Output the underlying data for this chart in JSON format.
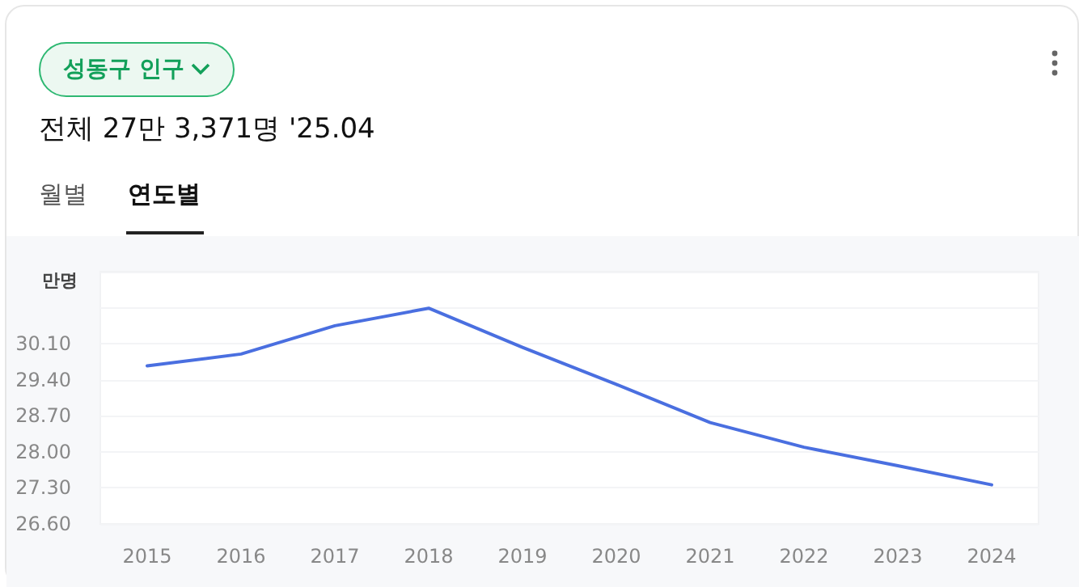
{
  "chart_data": {
    "type": "line",
    "title": "성동구 인구",
    "subtitle": "전체 27만 3,371명 '25.04",
    "annotations": [
      "월별",
      "연도별"
    ],
    "ylabel": "만명",
    "categories": [
      "2015",
      "2016",
      "2017",
      "2018",
      "2019",
      "2020",
      "2021",
      "2022",
      "2023",
      "2024"
    ],
    "series": [
      {
        "color": "#4a6fe0",
        "values": [
          29.67,
          29.9,
          30.45,
          30.79,
          30.03,
          29.31,
          28.57,
          28.09,
          27.73,
          27.36
        ]
      }
    ],
    "ylim": [
      26.6,
      31.5
    ],
    "yticks": [
      {
        "value": 26.6,
        "label": "26.60"
      },
      {
        "value": 27.3,
        "label": "27.30"
      },
      {
        "value": 28.0,
        "label": "28.00"
      },
      {
        "value": 28.7,
        "label": "28.70"
      },
      {
        "value": 29.4,
        "label": "29.40"
      },
      {
        "value": 30.1,
        "label": "30.10"
      },
      {
        "value": 30.8,
        "label": null
      },
      {
        "value": 31.5,
        "label": null
      }
    ],
    "grid": "y",
    "marker": "none",
    "line_style": "solid"
  }
}
